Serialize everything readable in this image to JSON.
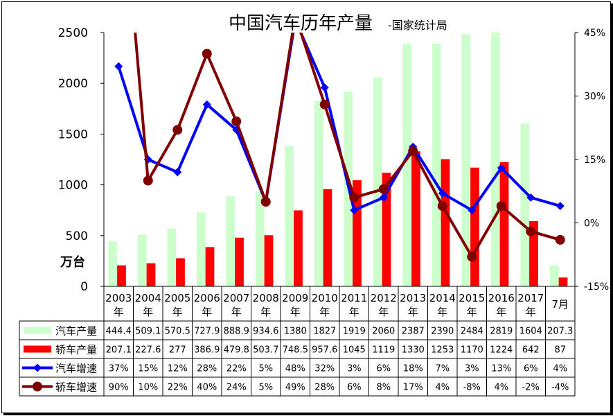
{
  "chart_data": {
    "type": "bar",
    "title": "中国汽车历年产量",
    "subtitle": "-国家统计局",
    "ylabel": "万台",
    "ylim": [
      0,
      2500
    ],
    "yticks": [
      0,
      500,
      1000,
      1500,
      2000,
      2500
    ],
    "y2lim": [
      -15,
      45
    ],
    "y2ticks": [
      "-15%",
      "0%",
      "15%",
      "30%",
      "45%"
    ],
    "y2tick_values": [
      -15,
      0,
      15,
      30,
      45
    ],
    "categories": [
      "2003\n年",
      "2004\n年",
      "2005\n年",
      "2006\n年",
      "2007\n年",
      "2008\n年",
      "2009\n年",
      "2010\n年",
      "2011\n年",
      "2012\n年",
      "2013\n年",
      "2014\n年",
      "2015\n年",
      "2016\n年",
      "2017\n年",
      "7月"
    ],
    "bar_series": [
      {
        "name": "汽车产量",
        "color": "#ccffcc",
        "values": [
          444.4,
          509.1,
          570.5,
          727.9,
          888.9,
          934.6,
          1380,
          1827,
          1919,
          2060,
          2387,
          2390,
          2484,
          2819,
          1604,
          207.3
        ],
        "labels": [
          "444.4",
          "509.1",
          "570.5",
          "727.9",
          "888.9",
          "934.6",
          "1380",
          "1827",
          "1919",
          "2060",
          "2387",
          "2390",
          "2484",
          "2819",
          "1604",
          "207.3"
        ]
      },
      {
        "name": "轿车产量",
        "color": "#ff0000",
        "values": [
          207.1,
          227.6,
          277,
          386.9,
          479.8,
          503.7,
          748.5,
          957.6,
          1045,
          1119,
          1330,
          1253,
          1170,
          1224,
          642,
          87
        ],
        "labels": [
          "207.1",
          "227.6",
          "277",
          "386.9",
          "479.8",
          "503.7",
          "748.5",
          "957.6",
          "1045",
          "1119",
          "1330",
          "1253",
          "1170",
          "1224",
          "642",
          "87"
        ]
      }
    ],
    "line_series": [
      {
        "name": "汽车增速",
        "color": "#0000ff",
        "marker": "diamond",
        "values": [
          37,
          15,
          12,
          28,
          22,
          5,
          48,
          32,
          3,
          6,
          18,
          7,
          3,
          13,
          6,
          4
        ],
        "labels": [
          "37%",
          "15%",
          "12%",
          "28%",
          "22%",
          "5%",
          "48%",
          "32%",
          "3%",
          "6%",
          "18%",
          "7%",
          "3%",
          "13%",
          "6%",
          "4%"
        ]
      },
      {
        "name": "轿车增速",
        "color": "#800000",
        "marker": "circle",
        "values": [
          90,
          10,
          22,
          40,
          24,
          5,
          49,
          28,
          6,
          8,
          17,
          4,
          -8,
          4,
          -2,
          -4
        ],
        "labels": [
          "90%",
          "10%",
          "22%",
          "40%",
          "24%",
          "5%",
          "49%",
          "28%",
          "6%",
          "8%",
          "17%",
          "4%",
          "-8%",
          "4%",
          "-2%",
          "-4%"
        ]
      }
    ]
  }
}
